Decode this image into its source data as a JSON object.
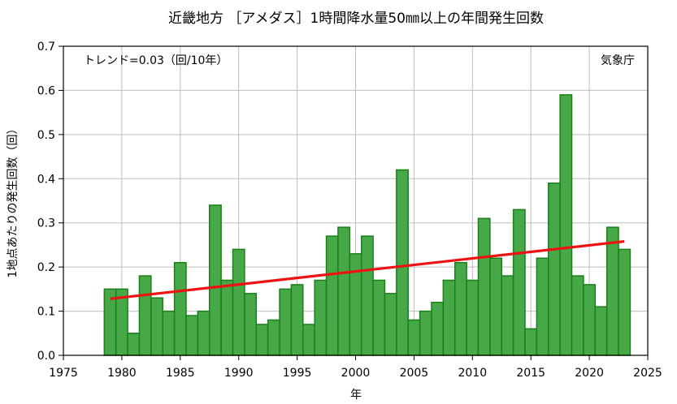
{
  "chart_data": {
    "type": "bar",
    "title": "近畿地方 ［アメダス］1時間降水量50㎜以上の年間発生回数",
    "xlabel": "年",
    "ylabel": "1地点あたりの発生回数（回）",
    "xlim": [
      1975,
      2025
    ],
    "ylim": [
      0,
      0.7
    ],
    "xticks": [
      "1975",
      "1980",
      "1985",
      "1990",
      "1995",
      "2000",
      "2005",
      "2010",
      "2015",
      "2020",
      "2025"
    ],
    "yticks": [
      "0.0",
      "0.1",
      "0.2",
      "0.3",
      "0.4",
      "0.5",
      "0.6",
      "0.7"
    ],
    "grid": true,
    "bar_color": "#46a846",
    "bar_edge_color": "#1a801a",
    "trend_color": "#ee1111",
    "x": [
      1979,
      1980,
      1981,
      1982,
      1983,
      1984,
      1985,
      1986,
      1987,
      1988,
      1989,
      1990,
      1991,
      1992,
      1993,
      1994,
      1995,
      1996,
      1997,
      1998,
      1999,
      2000,
      2001,
      2002,
      2003,
      2004,
      2005,
      2006,
      2007,
      2008,
      2009,
      2010,
      2011,
      2012,
      2013,
      2014,
      2015,
      2016,
      2017,
      2018,
      2019,
      2020,
      2021,
      2022,
      2023
    ],
    "values": [
      0.15,
      0.15,
      0.05,
      0.18,
      0.13,
      0.1,
      0.21,
      0.09,
      0.1,
      0.34,
      0.17,
      0.24,
      0.14,
      0.07,
      0.08,
      0.15,
      0.16,
      0.07,
      0.17,
      0.27,
      0.29,
      0.23,
      0.27,
      0.17,
      0.14,
      0.42,
      0.08,
      0.1,
      0.12,
      0.17,
      0.21,
      0.17,
      0.31,
      0.22,
      0.18,
      0.33,
      0.06,
      0.22,
      0.39,
      0.59,
      0.18,
      0.16,
      0.11,
      0.29,
      0.24
    ],
    "trend": {
      "x": [
        1979,
        2023
      ],
      "y": [
        0.128,
        0.258
      ]
    },
    "annotations": {
      "trend_text": "トレンド=0.03（回/10年）",
      "source": "気象庁"
    }
  }
}
